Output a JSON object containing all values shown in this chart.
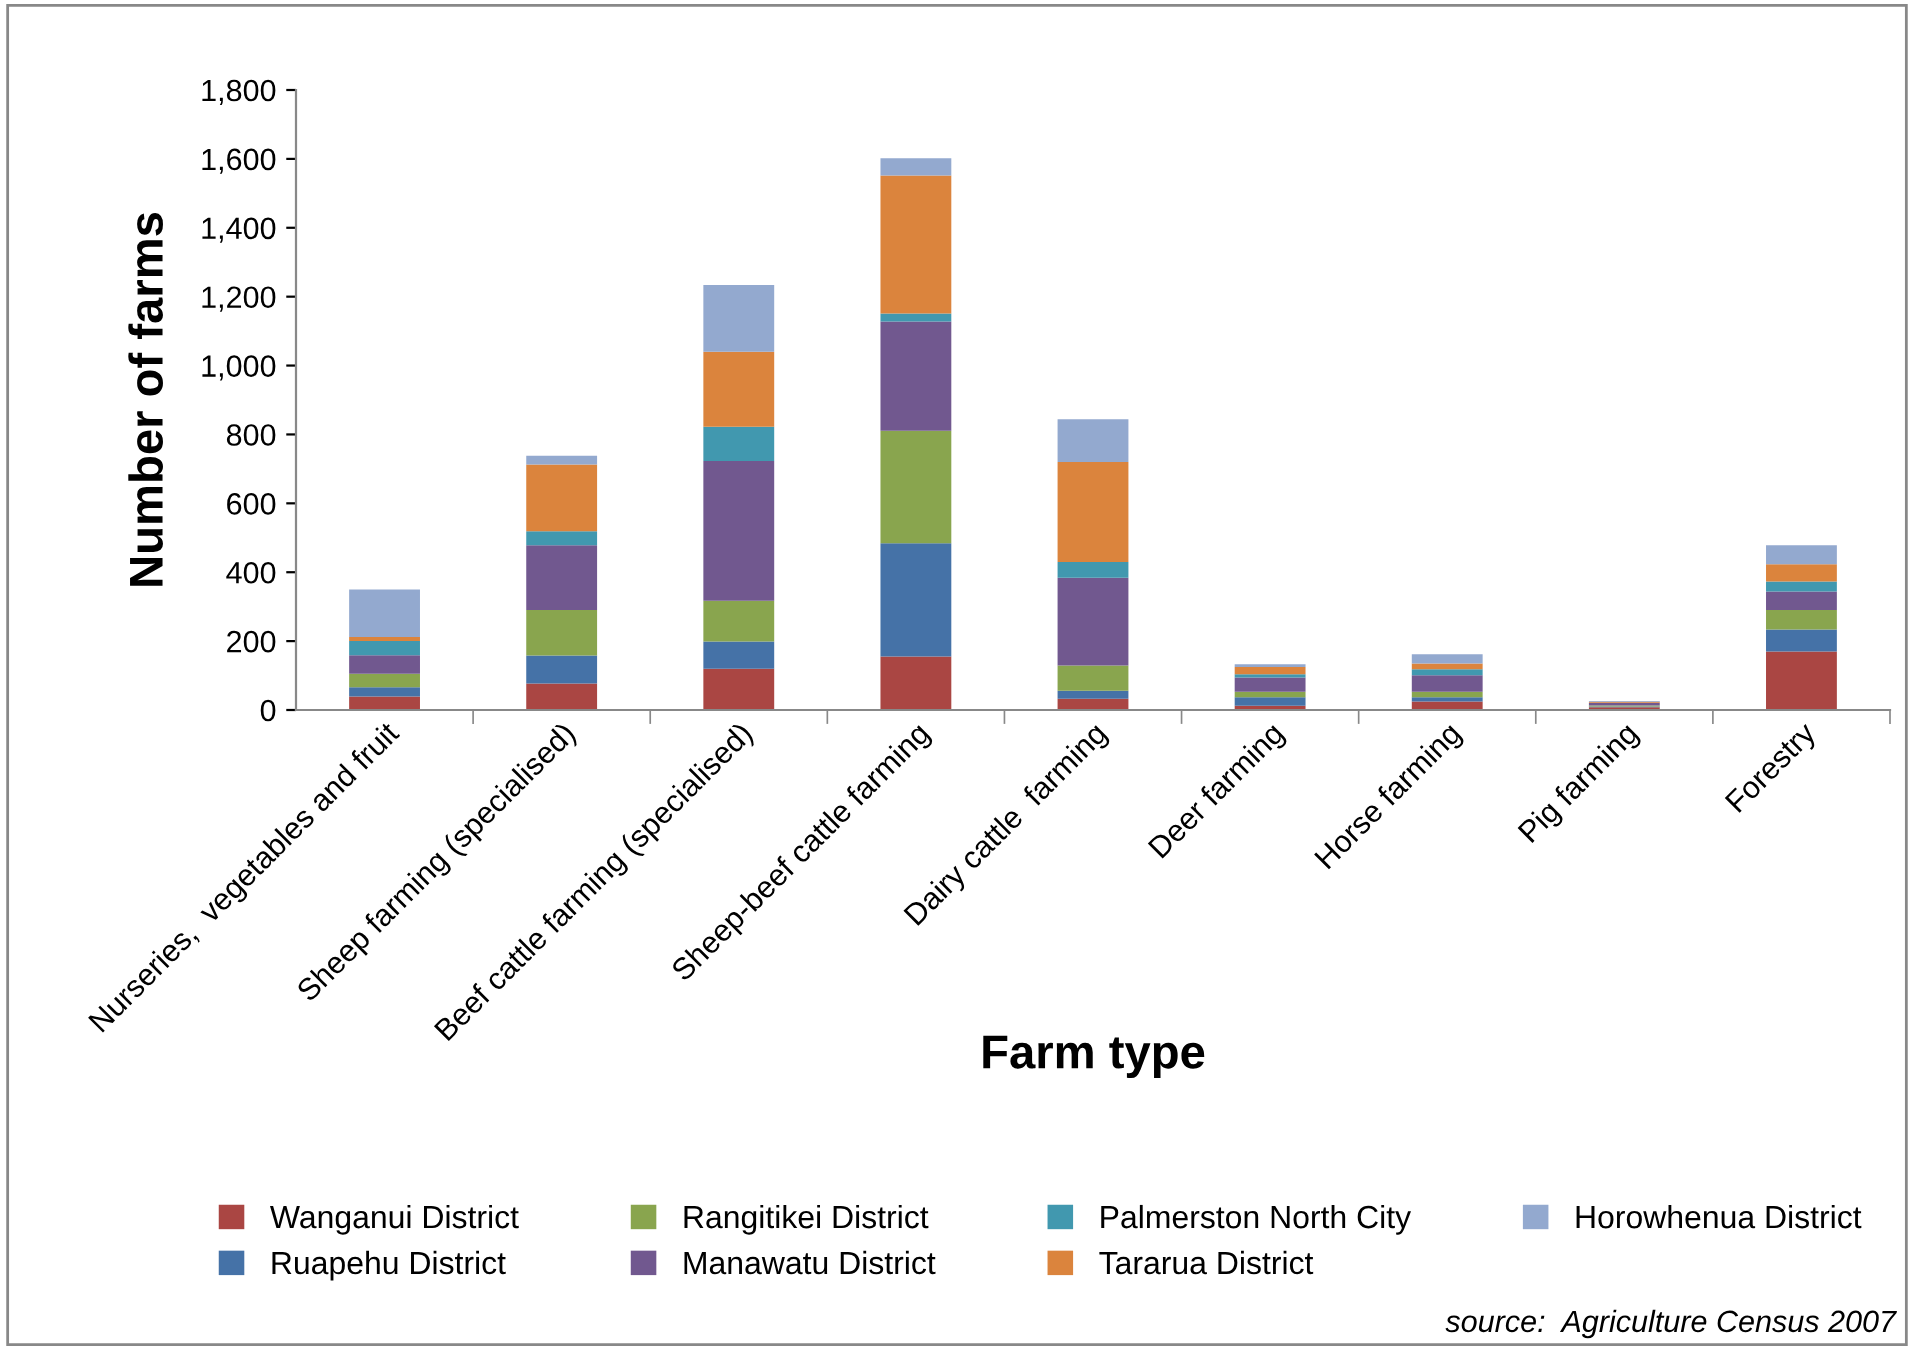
{
  "chart_data": {
    "type": "bar",
    "stacked": true,
    "xlabel": "Farm type",
    "ylabel": "Number of farms",
    "categories": [
      "Nurseries,  vegetables and fruit",
      "Sheep farming (specialised)",
      "Beef cattle farming (specialised)",
      "Sheep-beef cattle farming",
      "Dairy cattle  farming",
      "Deer farming",
      "Horse farming",
      "Pig farming",
      "Forestry"
    ],
    "series": [
      {
        "name": "Wanganui District",
        "color": "#aa4643",
        "values": [
          39,
          77,
          120,
          155,
          33,
          12,
          25,
          8,
          170
        ]
      },
      {
        "name": "Ruapehu District",
        "color": "#4572a7",
        "values": [
          27,
          81,
          79,
          329,
          23,
          25,
          12,
          2,
          64
        ]
      },
      {
        "name": "Rangitikei District",
        "color": "#89a54e",
        "values": [
          39,
          132,
          118,
          327,
          73,
          16,
          16,
          3,
          56
        ]
      },
      {
        "name": "Manawatu District",
        "color": "#71588f",
        "values": [
          54,
          188,
          406,
          317,
          255,
          41,
          48,
          8,
          54
        ]
      },
      {
        "name": "Palmerston North City",
        "color": "#4198af",
        "values": [
          41,
          41,
          99,
          23,
          46,
          10,
          17,
          null,
          29
        ]
      },
      {
        "name": "Tararua District",
        "color": "#db843d",
        "values": [
          12,
          194,
          218,
          401,
          290,
          21,
          17,
          3,
          50
        ]
      },
      {
        "name": "Horowhenua District",
        "color": "#93a9cf",
        "values": [
          138,
          25,
          194,
          50,
          124,
          8,
          27,
          2,
          55
        ]
      }
    ],
    "ylim": [
      0,
      1800
    ],
    "yticks": [
      0,
      {
        "value": 200,
        "label": "200"
      },
      {
        "value": 400,
        "label": "400"
      },
      {
        "value": 600,
        "label": "600"
      },
      {
        "value": 800,
        "label": "800"
      },
      {
        "value": 1000,
        "label": "1,000"
      },
      {
        "value": 1200,
        "label": "1,200"
      },
      {
        "value": 1400,
        "label": "1,400"
      },
      {
        "value": 1600,
        "label": "1,600"
      },
      {
        "value": 1800,
        "label": "1,800"
      }
    ],
    "grid": false,
    "legend": "bottom",
    "annotations": [
      "source:  Agriculture Census 2007"
    ]
  }
}
